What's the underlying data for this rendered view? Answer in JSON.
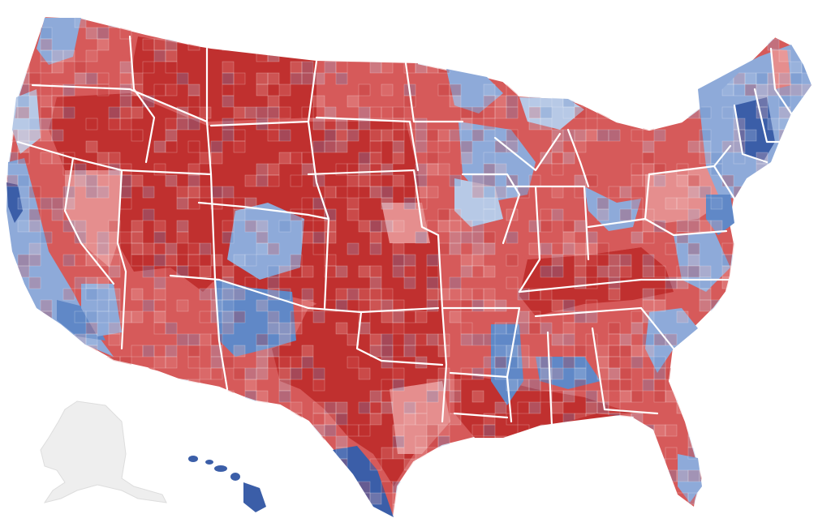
{
  "map": {
    "type": "us-county-choropleth",
    "palette": {
      "republican_strong": "#c0302f",
      "republican_medium": "#d65a5a",
      "republican_lean": "#e58e8e",
      "republican_faint": "#f0b3b3",
      "democrat_faint": "#b7c9e6",
      "democrat_lean": "#8eaad9",
      "democrat_medium": "#6088c7",
      "democrat_strong": "#3b5ea8",
      "no_data": "#eeeeee",
      "border": "#ffffff"
    }
  }
}
